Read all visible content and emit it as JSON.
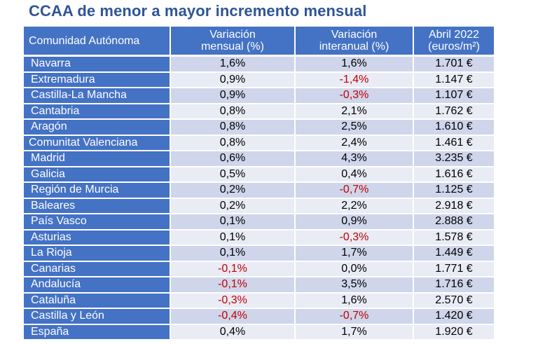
{
  "title": "CCAA  de menor a mayor incremento mensual",
  "headers": {
    "region": "Comunidad Autónoma",
    "monthly_line1": "Variación",
    "monthly_line2": "mensual (%)",
    "yearly_line1": "Variación",
    "yearly_line2": "interanual (%)",
    "price_line1": "Abril 2022",
    "price_line2": "(euros/m²)"
  },
  "rows": [
    {
      "region": "Navarra",
      "monthly": "1,6%",
      "yearly": "1,6%",
      "price": "1.701 €"
    },
    {
      "region": "Extremadura",
      "monthly": "0,9%",
      "yearly": "-1,4%",
      "price": "1.147 €"
    },
    {
      "region": "Castilla-La Mancha",
      "monthly": "0,9%",
      "yearly": "-0,3%",
      "price": "1.107 €"
    },
    {
      "region": "Cantabria",
      "monthly": "0,8%",
      "yearly": "2,1%",
      "price": "1.762 €"
    },
    {
      "region": "Aragón",
      "monthly": "0,8%",
      "yearly": "2,5%",
      "price": "1.610 €"
    },
    {
      "region": "Comunitat Valenciana",
      "monthly": "0,8%",
      "yearly": "2,4%",
      "price": "1.461 €"
    },
    {
      "region": "Madrid",
      "monthly": "0,6%",
      "yearly": "4,3%",
      "price": "3.235 €"
    },
    {
      "region": "Galicia",
      "monthly": "0,5%",
      "yearly": "0,4%",
      "price": "1.616 €"
    },
    {
      "region": "Región de Murcia",
      "monthly": "0,2%",
      "yearly": "-0,7%",
      "price": "1.125 €"
    },
    {
      "region": "Baleares",
      "monthly": "0,2%",
      "yearly": "2,2%",
      "price": "2.918 €"
    },
    {
      "region": "País Vasco",
      "monthly": "0,1%",
      "yearly": "0,9%",
      "price": "2.888 €"
    },
    {
      "region": "Asturias",
      "monthly": "0,1%",
      "yearly": "-0,3%",
      "price": "1.578 €"
    },
    {
      "region": "La Rioja",
      "monthly": "0,1%",
      "yearly": "1,7%",
      "price": "1.449 €"
    },
    {
      "region": "Canarias",
      "monthly": "-0,1%",
      "yearly": "0,0%",
      "price": "1.771 €"
    },
    {
      "region": "Andalucía",
      "monthly": "-0,1%",
      "yearly": "3,5%",
      "price": "1.716 €"
    },
    {
      "region": "Cataluña",
      "monthly": "-0,3%",
      "yearly": "1,6%",
      "price": "2.570 €"
    },
    {
      "region": "Castilla y León",
      "monthly": "-0,4%",
      "yearly": "-0,7%",
      "price": "1.420 €"
    },
    {
      "region": "España",
      "monthly": "0,4%",
      "yearly": "1,7%",
      "price": "1.920 €"
    }
  ],
  "colors": {
    "title": "#2f5597",
    "header_bg": "#4472c4",
    "row_odd": "#cfd5ea",
    "row_even": "#e9ebf5",
    "negative": "#c00000"
  }
}
